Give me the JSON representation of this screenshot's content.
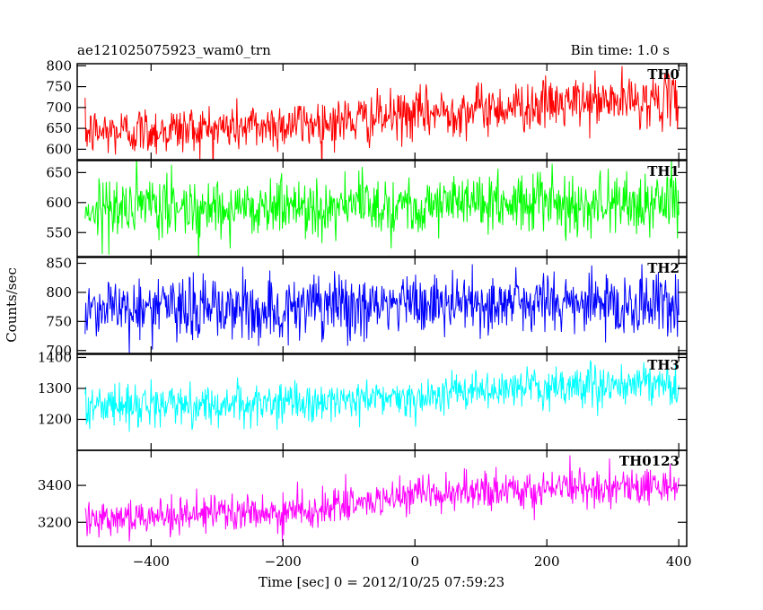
{
  "chart_data": {
    "type": "line",
    "title_left": "ae121025075923_wam0_trn",
    "title_right": "Bin time: 1.0 s",
    "xlabel": "Time [sec] 0 = 2012/10/25 07:59:23",
    "ylabel": "Counts/sec",
    "xlim": [
      -512,
      412
    ],
    "x_ticks": [
      -400,
      -200,
      0,
      200,
      400
    ],
    "x_ticks_text": [
      "−400",
      "−200",
      "0",
      "200",
      "400"
    ],
    "x_start": -500,
    "x_end": 400,
    "grid": false,
    "panels": [
      {
        "name": "TH0",
        "color": "#ff0000",
        "ylim": [
          575,
          805
        ],
        "y_ticks": [
          600,
          650,
          700,
          750,
          800
        ],
        "y_ticks_text": [
          "600",
          "650",
          "700",
          "750",
          "800"
        ],
        "trend": [
          [
            -500,
            640
          ],
          [
            -300,
            650
          ],
          [
            -100,
            668
          ],
          [
            100,
            698
          ],
          [
            300,
            715
          ],
          [
            400,
            718
          ]
        ],
        "noise": 30
      },
      {
        "name": "TH1",
        "color": "#00ff00",
        "ylim": [
          510,
          670
        ],
        "y_ticks": [
          550,
          600,
          650
        ],
        "y_ticks_text": [
          "550",
          "600",
          "650"
        ],
        "trend": [
          [
            -500,
            590
          ],
          [
            -100,
            595
          ],
          [
            100,
            600
          ],
          [
            400,
            598
          ]
        ],
        "noise": 25
      },
      {
        "name": "TH2",
        "color": "#0000ff",
        "ylim": [
          695,
          860
        ],
        "y_ticks": [
          700,
          750,
          800,
          850
        ],
        "y_ticks_text": [
          "700",
          "750",
          "800",
          "850"
        ],
        "trend": [
          [
            -500,
            775
          ],
          [
            -200,
            770
          ],
          [
            0,
            780
          ],
          [
            200,
            782
          ],
          [
            400,
            778
          ]
        ],
        "noise": 28
      },
      {
        "name": "TH3",
        "color": "#00ffff",
        "ylim": [
          1100,
          1410
        ],
        "y_ticks": [
          1200,
          1300,
          1400
        ],
        "y_ticks_text": [
          "1200",
          "1300",
          "1400"
        ],
        "trend": [
          [
            -500,
            1245
          ],
          [
            -200,
            1250
          ],
          [
            0,
            1275
          ],
          [
            200,
            1305
          ],
          [
            400,
            1310
          ]
        ],
        "noise": 32
      },
      {
        "name": "TH0123",
        "color": "#ff00ff",
        "ylim": [
          3070,
          3590
        ],
        "y_ticks": [
          3200,
          3400
        ],
        "y_ticks_text": [
          "3200",
          "3400"
        ],
        "trend": [
          [
            -500,
            3230
          ],
          [
            -200,
            3250
          ],
          [
            0,
            3340
          ],
          [
            200,
            3385
          ],
          [
            400,
            3400
          ]
        ],
        "noise": 50
      }
    ]
  }
}
